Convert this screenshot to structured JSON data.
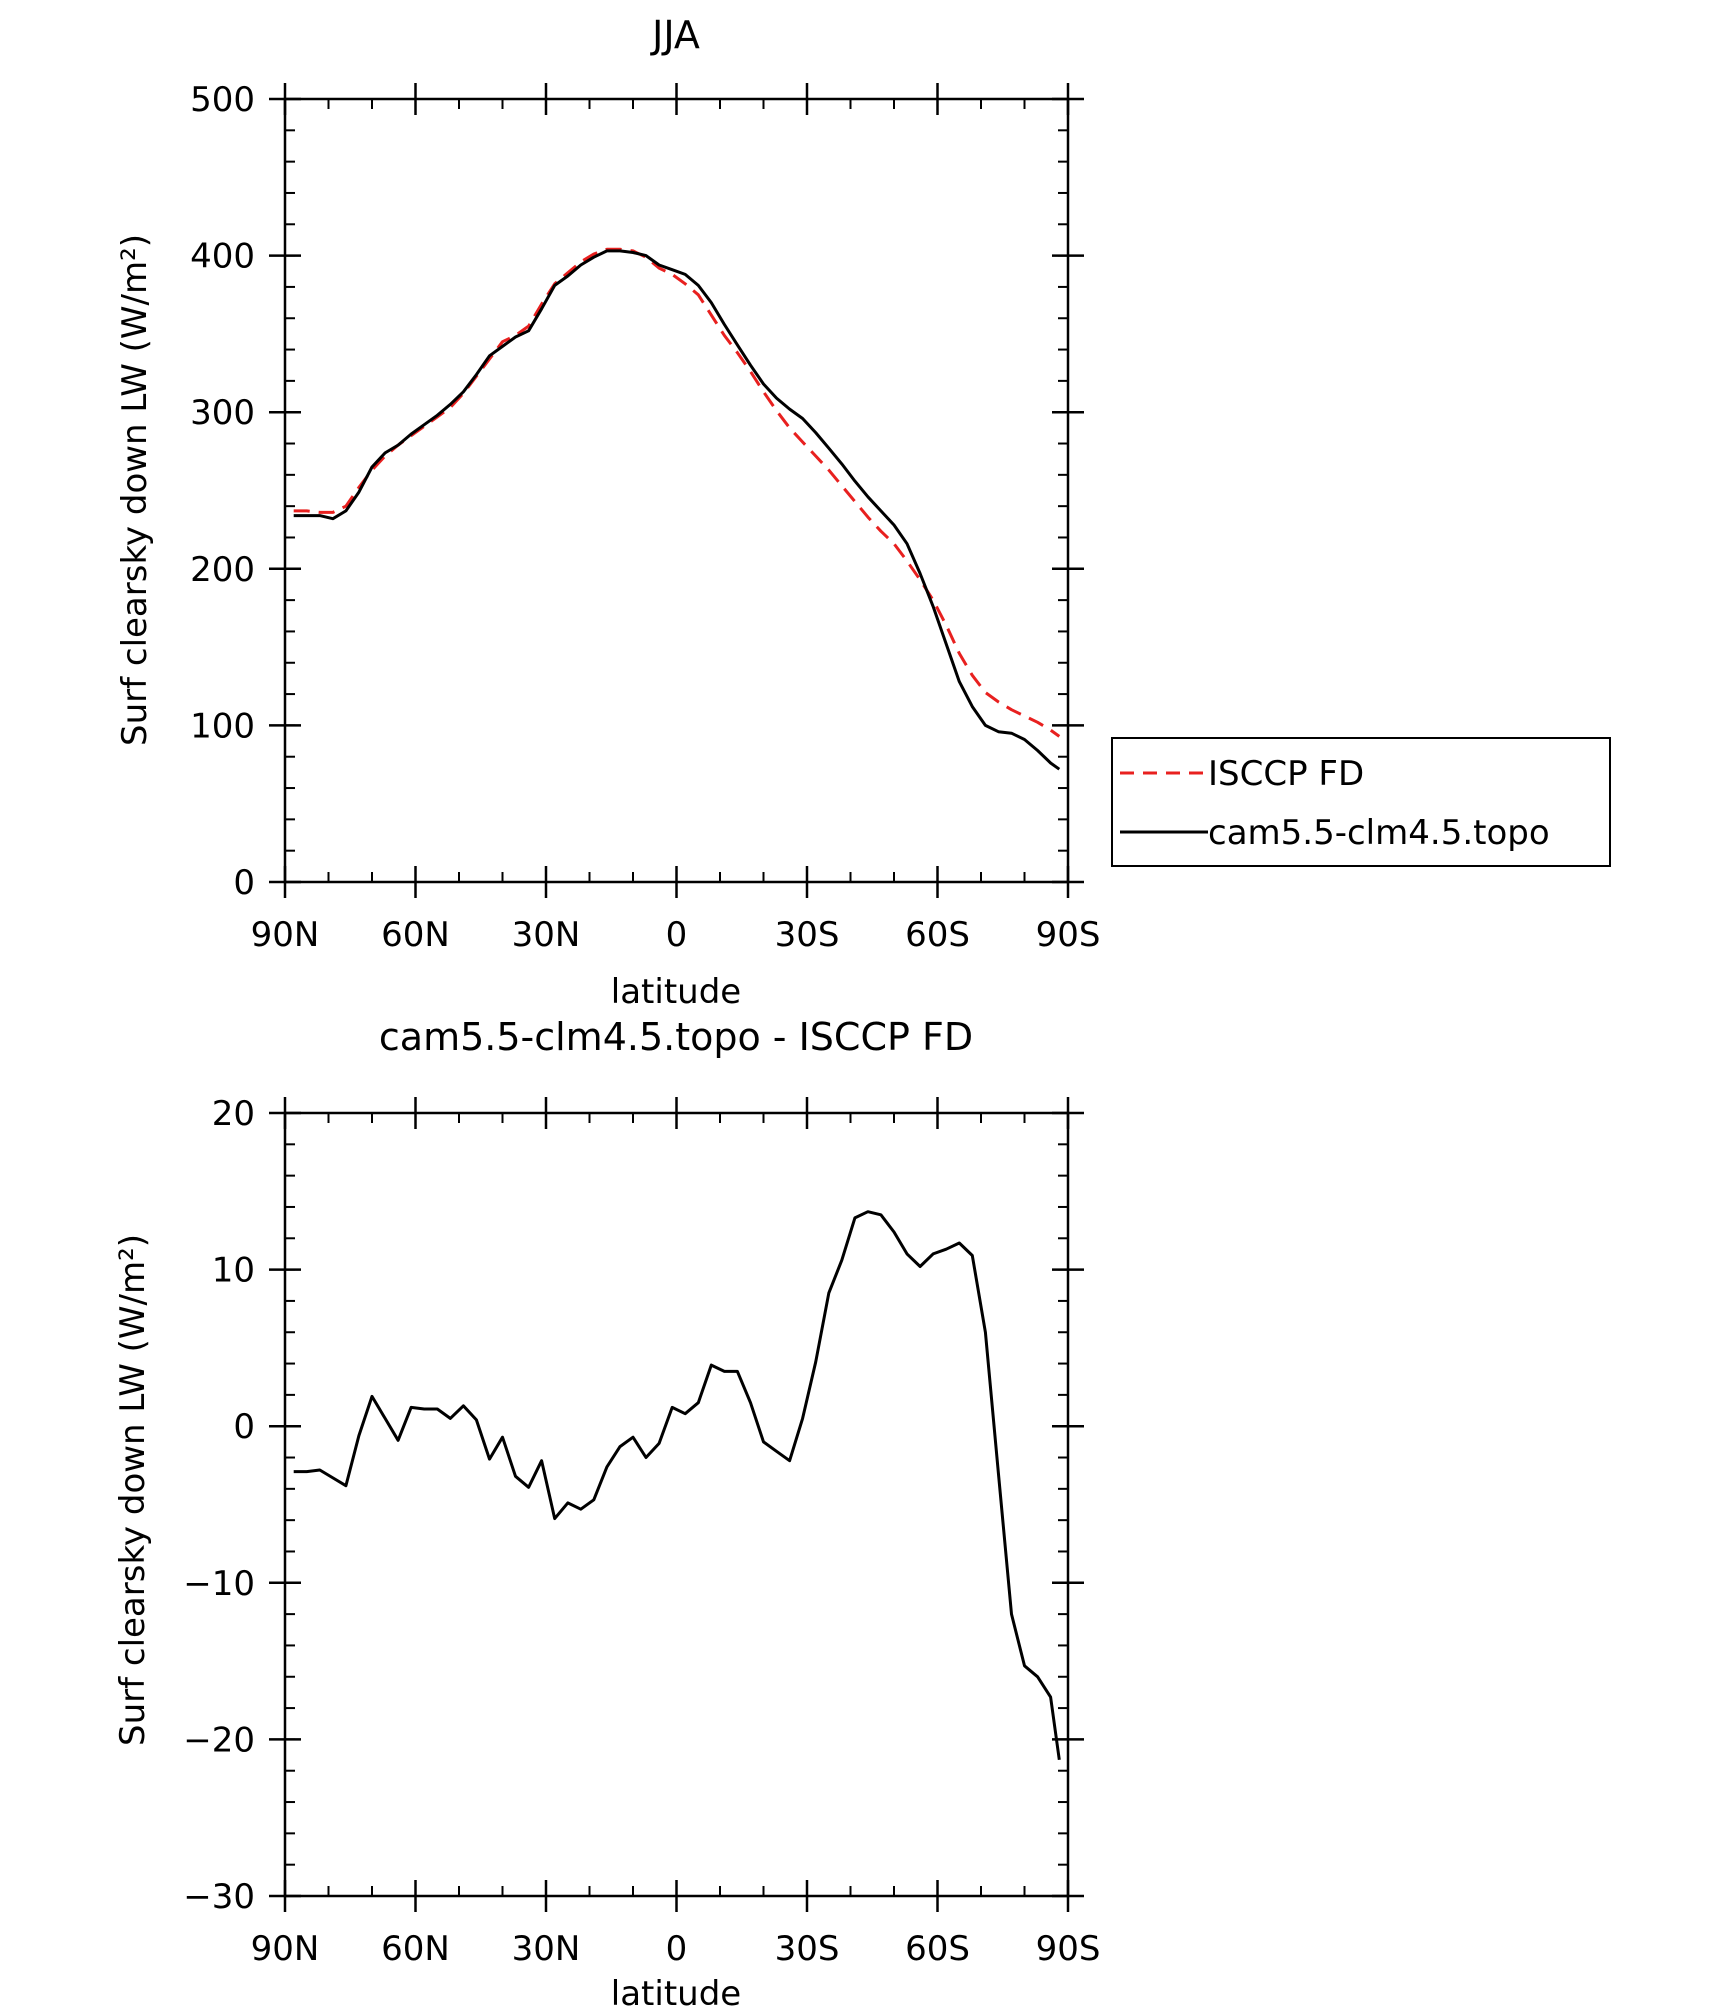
{
  "chart_data": [
    {
      "type": "line",
      "title": "JJA",
      "xlabel": "latitude",
      "ylabel": "Surf clearsky down LW (W/m²)",
      "xlim": [
        90,
        -90
      ],
      "ylim": [
        0,
        500
      ],
      "xticks": [
        {
          "value": 90,
          "label": "90N"
        },
        {
          "value": 60,
          "label": "60N"
        },
        {
          "value": 30,
          "label": "30N"
        },
        {
          "value": 0,
          "label": "0"
        },
        {
          "value": -30,
          "label": "30S"
        },
        {
          "value": -60,
          "label": "60S"
        },
        {
          "value": -90,
          "label": "90S"
        }
      ],
      "yticks": [
        {
          "value": 0,
          "label": "0"
        },
        {
          "value": 100,
          "label": "100"
        },
        {
          "value": 200,
          "label": "200"
        },
        {
          "value": 300,
          "label": "300"
        },
        {
          "value": 400,
          "label": "400"
        },
        {
          "value": 500,
          "label": "500"
        }
      ],
      "legend": {
        "placement": "right",
        "entries": [
          "ISCCP FD",
          "cam5.5-clm4.5.topo"
        ]
      },
      "series": [
        {
          "name": "ISCCP FD",
          "color": "#e8201f",
          "dash": "dashed",
          "x": [
            88,
            85,
            82,
            79,
            76,
            73,
            70,
            67,
            64,
            61,
            58,
            55,
            52,
            49,
            46,
            43,
            40,
            37,
            34,
            31,
            28,
            25,
            22,
            19,
            16,
            13,
            10,
            7,
            4,
            1,
            -2,
            -5,
            -8,
            -11,
            -14,
            -17,
            -20,
            -23,
            -26,
            -29,
            -32,
            -35,
            -38,
            -41,
            -44,
            -47,
            -50,
            -53,
            -56,
            -59,
            -62,
            -65,
            -68,
            -71,
            -74,
            -77,
            -80,
            -83,
            -86,
            -88
          ],
          "y": [
            237,
            237,
            236,
            236,
            240,
            252,
            263,
            272,
            279,
            285,
            291,
            297,
            303,
            312,
            323,
            334,
            345,
            349,
            355,
            369,
            382,
            389,
            396,
            401,
            404,
            404,
            403,
            399,
            392,
            388,
            382,
            375,
            362,
            349,
            338,
            326,
            313,
            301,
            290,
            281,
            272,
            263,
            253,
            243,
            233,
            224,
            216,
            205,
            193,
            180,
            164,
            146,
            132,
            121,
            115,
            110,
            106,
            102,
            97,
            93
          ]
        },
        {
          "name": "cam5.5-clm4.5.topo",
          "color": "#000000",
          "dash": "solid",
          "x": [
            88,
            85,
            82,
            79,
            76,
            73,
            70,
            67,
            64,
            61,
            58,
            55,
            52,
            49,
            46,
            43,
            40,
            37,
            34,
            31,
            28,
            25,
            22,
            19,
            16,
            13,
            10,
            7,
            4,
            1,
            -2,
            -5,
            -8,
            -11,
            -14,
            -17,
            -20,
            -23,
            -26,
            -29,
            -32,
            -35,
            -38,
            -41,
            -44,
            -47,
            -50,
            -53,
            -56,
            -59,
            -62,
            -65,
            -68,
            -71,
            -74,
            -77,
            -80,
            -83,
            -86,
            -88
          ],
          "y": [
            234,
            234,
            234,
            232,
            237,
            249,
            265,
            274,
            279,
            286,
            292,
            298,
            305,
            313,
            324,
            336,
            342,
            348,
            352,
            366,
            381,
            387,
            394,
            399,
            403,
            403,
            402,
            400,
            394,
            391,
            388,
            381,
            370,
            356,
            343,
            330,
            318,
            309,
            302,
            296,
            287,
            277,
            267,
            256,
            246,
            237,
            228,
            216,
            197,
            176,
            152,
            128,
            112,
            100,
            96,
            95,
            91,
            84,
            76,
            72
          ]
        }
      ]
    },
    {
      "type": "line",
      "title": "cam5.5-clm4.5.topo - ISCCP FD",
      "xlabel": "latitude",
      "ylabel": "Surf clearsky down LW (W/m²)",
      "xlim": [
        90,
        -90
      ],
      "ylim": [
        -30,
        20
      ],
      "xticks": [
        {
          "value": 90,
          "label": "90N"
        },
        {
          "value": 60,
          "label": "60N"
        },
        {
          "value": 30,
          "label": "30N"
        },
        {
          "value": 0,
          "label": "0"
        },
        {
          "value": -30,
          "label": "30S"
        },
        {
          "value": -60,
          "label": "60S"
        },
        {
          "value": -90,
          "label": "90S"
        }
      ],
      "yticks": [
        {
          "value": -30,
          "label": "−30"
        },
        {
          "value": -20,
          "label": "−20"
        },
        {
          "value": -10,
          "label": "−10"
        },
        {
          "value": 0,
          "label": "0"
        },
        {
          "value": 10,
          "label": "10"
        },
        {
          "value": 20,
          "label": "20"
        }
      ],
      "series": [
        {
          "color": "#000000",
          "dash": "solid",
          "x": [
            88,
            85,
            82,
            79,
            76,
            73,
            70,
            67,
            64,
            61,
            58,
            55,
            52,
            49,
            46,
            43,
            40,
            37,
            34,
            31,
            28,
            25,
            22,
            19,
            16,
            13,
            10,
            7,
            4,
            1,
            -2,
            -5,
            -8,
            -11,
            -14,
            -17,
            -20,
            -23,
            -26,
            -29,
            -32,
            -35,
            -38,
            -41,
            -44,
            -47,
            -50,
            -53,
            -56,
            -59,
            -62,
            -65,
            -68,
            -71,
            -74,
            -77,
            -80,
            -83,
            -86,
            -88
          ],
          "y": [
            -2.9,
            -2.9,
            -2.8,
            -3.3,
            -3.8,
            -0.6,
            1.9,
            0.5,
            -0.9,
            1.2,
            1.1,
            1.1,
            0.5,
            1.3,
            0.4,
            -2.1,
            -0.7,
            -3.2,
            -3.9,
            -2.2,
            -5.9,
            -4.9,
            -5.3,
            -4.7,
            -2.6,
            -1.3,
            -0.7,
            -2.0,
            -1.1,
            1.2,
            0.8,
            1.5,
            3.9,
            3.5,
            3.5,
            1.5,
            -1.0,
            -1.6,
            -2.2,
            0.5,
            4.1,
            8.5,
            10.6,
            13.3,
            13.7,
            13.5,
            12.4,
            11.0,
            10.2,
            11.0,
            11.3,
            11.7,
            10.9,
            6.0,
            -3.0,
            -12.0,
            -15.3,
            -16.0,
            -17.3,
            -21.3
          ]
        }
      ]
    }
  ]
}
